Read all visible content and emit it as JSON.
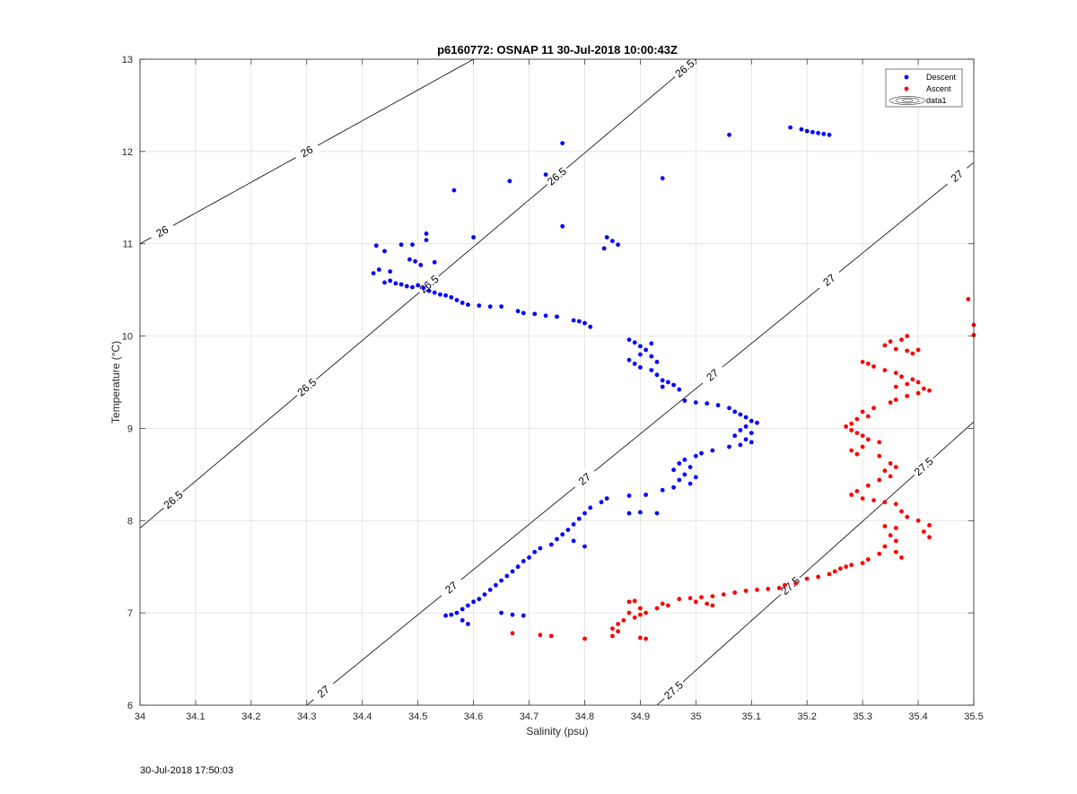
{
  "chart_data": {
    "type": "scatter",
    "title": "p6160772: OSNAP 11 30-Jul-2018 10:00:43Z",
    "xlabel": "Salinity (psu)",
    "ylabel": "Temperature (°C)",
    "xlim": [
      34,
      35.5
    ],
    "ylim": [
      6,
      13
    ],
    "xticks": [
      "34",
      "34.1",
      "34.2",
      "34.3",
      "34.4",
      "34.5",
      "34.6",
      "34.7",
      "34.8",
      "34.9",
      "35",
      "35.1",
      "35.2",
      "35.3",
      "35.4",
      "35.5"
    ],
    "yticks": [
      "6",
      "7",
      "8",
      "9",
      "10",
      "11",
      "12",
      "13"
    ],
    "grid": true,
    "legend": {
      "placement": "top-right",
      "entries": [
        "Descent",
        "Ascent",
        "data1"
      ]
    },
    "series": [
      {
        "name": "Descent",
        "color": "#0000ff",
        "points": [
          [
            35.17,
            12.26
          ],
          [
            35.19,
            12.24
          ],
          [
            35.2,
            12.22
          ],
          [
            35.21,
            12.21
          ],
          [
            35.22,
            12.2
          ],
          [
            35.23,
            12.19
          ],
          [
            35.24,
            12.18
          ],
          [
            35.06,
            12.18
          ],
          [
            34.76,
            12.09
          ],
          [
            34.73,
            11.75
          ],
          [
            34.94,
            11.71
          ],
          [
            34.665,
            11.68
          ],
          [
            34.565,
            11.58
          ],
          [
            34.76,
            11.19
          ],
          [
            34.515,
            11.11
          ],
          [
            34.6,
            11.07
          ],
          [
            34.84,
            11.07
          ],
          [
            34.85,
            11.03
          ],
          [
            34.86,
            10.99
          ],
          [
            34.835,
            10.95
          ],
          [
            34.425,
            10.98
          ],
          [
            34.47,
            10.99
          ],
          [
            34.49,
            10.99
          ],
          [
            34.515,
            11.04
          ],
          [
            34.44,
            10.92
          ],
          [
            34.485,
            10.83
          ],
          [
            34.43,
            10.72
          ],
          [
            34.45,
            10.7
          ],
          [
            34.42,
            10.68
          ],
          [
            34.495,
            10.81
          ],
          [
            34.53,
            10.8
          ],
          [
            34.505,
            10.77
          ],
          [
            34.44,
            10.58
          ],
          [
            34.45,
            10.6
          ],
          [
            34.46,
            10.57
          ],
          [
            34.47,
            10.56
          ],
          [
            34.48,
            10.54
          ],
          [
            34.49,
            10.53
          ],
          [
            34.5,
            10.55
          ],
          [
            34.51,
            10.52
          ],
          [
            34.52,
            10.49
          ],
          [
            34.53,
            10.47
          ],
          [
            34.54,
            10.45
          ],
          [
            34.55,
            10.44
          ],
          [
            34.56,
            10.42
          ],
          [
            34.57,
            10.39
          ],
          [
            34.58,
            10.36
          ],
          [
            34.59,
            10.34
          ],
          [
            34.61,
            10.33
          ],
          [
            34.63,
            10.32
          ],
          [
            34.65,
            10.32
          ],
          [
            34.68,
            10.27
          ],
          [
            34.69,
            10.25
          ],
          [
            34.71,
            10.24
          ],
          [
            34.73,
            10.22
          ],
          [
            34.75,
            10.21
          ],
          [
            34.78,
            10.17
          ],
          [
            34.79,
            10.16
          ],
          [
            34.8,
            10.14
          ],
          [
            34.81,
            10.1
          ],
          [
            34.88,
            9.96
          ],
          [
            34.89,
            9.93
          ],
          [
            34.9,
            9.89
          ],
          [
            34.92,
            9.92
          ],
          [
            34.91,
            9.85
          ],
          [
            34.9,
            9.8
          ],
          [
            34.92,
            9.78
          ],
          [
            34.88,
            9.74
          ],
          [
            34.89,
            9.7
          ],
          [
            34.93,
            9.72
          ],
          [
            34.9,
            9.66
          ],
          [
            34.92,
            9.63
          ],
          [
            34.93,
            9.58
          ],
          [
            34.94,
            9.52
          ],
          [
            34.95,
            9.5
          ],
          [
            34.96,
            9.47
          ],
          [
            34.94,
            9.45
          ],
          [
            34.97,
            9.42
          ],
          [
            34.98,
            9.3
          ],
          [
            35.0,
            9.28
          ],
          [
            35.02,
            9.27
          ],
          [
            35.04,
            9.25
          ],
          [
            35.06,
            9.22
          ],
          [
            35.07,
            9.18
          ],
          [
            35.08,
            9.15
          ],
          [
            35.09,
            9.12
          ],
          [
            35.1,
            9.08
          ],
          [
            35.11,
            9.06
          ],
          [
            35.09,
            9.02
          ],
          [
            35.08,
            8.98
          ],
          [
            35.1,
            8.95
          ],
          [
            35.07,
            8.92
          ],
          [
            35.09,
            8.88
          ],
          [
            35.1,
            8.85
          ],
          [
            35.08,
            8.82
          ],
          [
            35.06,
            8.8
          ],
          [
            35.03,
            8.76
          ],
          [
            35.01,
            8.73
          ],
          [
            35.0,
            8.7
          ],
          [
            34.98,
            8.66
          ],
          [
            34.97,
            8.62
          ],
          [
            34.99,
            8.58
          ],
          [
            34.96,
            8.55
          ],
          [
            34.98,
            8.5
          ],
          [
            35.0,
            8.47
          ],
          [
            34.97,
            8.44
          ],
          [
            34.99,
            8.4
          ],
          [
            34.96,
            8.36
          ],
          [
            34.94,
            8.33
          ],
          [
            34.91,
            8.28
          ],
          [
            34.88,
            8.27
          ],
          [
            34.84,
            8.24
          ],
          [
            34.83,
            8.2
          ],
          [
            34.81,
            8.14
          ],
          [
            34.8,
            8.08
          ],
          [
            34.79,
            8.02
          ],
          [
            34.78,
            7.96
          ],
          [
            34.77,
            7.9
          ],
          [
            34.76,
            7.85
          ],
          [
            34.75,
            7.8
          ],
          [
            34.74,
            7.74
          ],
          [
            34.72,
            7.7
          ],
          [
            34.71,
            7.66
          ],
          [
            34.7,
            7.6
          ],
          [
            34.69,
            7.56
          ],
          [
            34.68,
            7.5
          ],
          [
            34.67,
            7.45
          ],
          [
            34.66,
            7.4
          ],
          [
            34.65,
            7.35
          ],
          [
            34.64,
            7.3
          ],
          [
            34.63,
            7.25
          ],
          [
            34.62,
            7.2
          ],
          [
            34.61,
            7.15
          ],
          [
            34.6,
            7.12
          ],
          [
            34.59,
            7.08
          ],
          [
            34.58,
            7.04
          ],
          [
            34.57,
            7.0
          ],
          [
            34.56,
            6.98
          ],
          [
            34.55,
            6.97
          ],
          [
            34.58,
            6.92
          ],
          [
            34.59,
            6.88
          ],
          [
            34.65,
            7.0
          ],
          [
            34.67,
            6.98
          ],
          [
            34.69,
            6.97
          ],
          [
            34.88,
            8.08
          ],
          [
            34.9,
            8.09
          ],
          [
            34.93,
            8.08
          ],
          [
            34.8,
            7.72
          ],
          [
            34.78,
            7.78
          ]
        ]
      },
      {
        "name": "Ascent",
        "color": "#ff0000",
        "points": [
          [
            35.49,
            10.4
          ],
          [
            35.5,
            10.12
          ],
          [
            35.5,
            10.01
          ],
          [
            35.38,
            10.0
          ],
          [
            35.37,
            9.96
          ],
          [
            35.35,
            9.94
          ],
          [
            35.34,
            9.9
          ],
          [
            35.36,
            9.86
          ],
          [
            35.38,
            9.84
          ],
          [
            35.4,
            9.85
          ],
          [
            35.39,
            9.81
          ],
          [
            35.3,
            9.72
          ],
          [
            35.31,
            9.7
          ],
          [
            35.32,
            9.67
          ],
          [
            35.34,
            9.63
          ],
          [
            35.36,
            9.6
          ],
          [
            35.37,
            9.56
          ],
          [
            35.39,
            9.53
          ],
          [
            35.4,
            9.5
          ],
          [
            35.38,
            9.48
          ],
          [
            35.36,
            9.45
          ],
          [
            35.41,
            9.43
          ],
          [
            35.42,
            9.41
          ],
          [
            35.4,
            9.38
          ],
          [
            35.38,
            9.35
          ],
          [
            35.36,
            9.31
          ],
          [
            35.35,
            9.28
          ],
          [
            35.32,
            9.22
          ],
          [
            35.3,
            9.18
          ],
          [
            35.31,
            9.13
          ],
          [
            35.29,
            9.1
          ],
          [
            35.28,
            9.05
          ],
          [
            35.27,
            9.02
          ],
          [
            35.28,
            8.98
          ],
          [
            35.29,
            8.95
          ],
          [
            35.3,
            8.92
          ],
          [
            35.31,
            8.88
          ],
          [
            35.33,
            8.85
          ],
          [
            35.3,
            8.8
          ],
          [
            35.28,
            8.76
          ],
          [
            35.29,
            8.72
          ],
          [
            35.33,
            8.7
          ],
          [
            35.35,
            8.62
          ],
          [
            35.36,
            8.58
          ],
          [
            35.34,
            8.54
          ],
          [
            35.35,
            8.48
          ],
          [
            35.33,
            8.44
          ],
          [
            35.31,
            8.38
          ],
          [
            35.29,
            8.32
          ],
          [
            35.28,
            8.28
          ],
          [
            35.3,
            8.24
          ],
          [
            35.32,
            8.22
          ],
          [
            35.34,
            8.2
          ],
          [
            35.36,
            8.18
          ],
          [
            35.37,
            8.1
          ],
          [
            35.38,
            8.04
          ],
          [
            35.4,
            8.0
          ],
          [
            35.42,
            7.95
          ],
          [
            35.41,
            7.88
          ],
          [
            35.42,
            7.82
          ],
          [
            35.36,
            7.92
          ],
          [
            35.34,
            7.94
          ],
          [
            35.35,
            7.84
          ],
          [
            35.36,
            7.78
          ],
          [
            35.34,
            7.72
          ],
          [
            35.36,
            7.66
          ],
          [
            35.37,
            7.6
          ],
          [
            35.33,
            7.64
          ],
          [
            35.31,
            7.58
          ],
          [
            35.3,
            7.54
          ],
          [
            35.28,
            7.52
          ],
          [
            35.27,
            7.5
          ],
          [
            35.26,
            7.48
          ],
          [
            35.25,
            7.45
          ],
          [
            35.24,
            7.42
          ],
          [
            35.22,
            7.39
          ],
          [
            35.2,
            7.37
          ],
          [
            35.18,
            7.32
          ],
          [
            35.16,
            7.3
          ],
          [
            35.15,
            7.27
          ],
          [
            35.13,
            7.26
          ],
          [
            35.11,
            7.25
          ],
          [
            35.09,
            7.24
          ],
          [
            35.07,
            7.22
          ],
          [
            35.05,
            7.2
          ],
          [
            35.03,
            7.18
          ],
          [
            35.01,
            7.17
          ],
          [
            34.99,
            7.16
          ],
          [
            34.97,
            7.15
          ],
          [
            35.02,
            7.1
          ],
          [
            35.03,
            7.08
          ],
          [
            35.0,
            7.12
          ],
          [
            34.95,
            7.08
          ],
          [
            34.94,
            7.1
          ],
          [
            34.93,
            7.05
          ],
          [
            34.91,
            7.0
          ],
          [
            34.9,
            6.98
          ],
          [
            34.89,
            6.95
          ],
          [
            34.87,
            6.92
          ],
          [
            34.86,
            6.88
          ],
          [
            34.85,
            6.83
          ],
          [
            34.86,
            6.8
          ],
          [
            34.85,
            6.75
          ],
          [
            34.9,
            6.73
          ],
          [
            34.91,
            6.72
          ],
          [
            34.88,
            7.12
          ],
          [
            34.89,
            7.13
          ],
          [
            34.9,
            7.05
          ],
          [
            34.88,
            7.0
          ],
          [
            34.8,
            6.72
          ],
          [
            34.74,
            6.75
          ],
          [
            34.72,
            6.76
          ],
          [
            34.67,
            6.78
          ]
        ]
      }
    ],
    "isopycnals": [
      {
        "sigma": 26,
        "labels": [
          "26",
          "26"
        ]
      },
      {
        "sigma": 26.5,
        "labels": [
          "26.5",
          "26.5",
          "26.5",
          "26.5",
          "26.5"
        ]
      },
      {
        "sigma": 27,
        "labels": [
          "27",
          "27",
          "27",
          "27",
          "27",
          "27"
        ]
      },
      {
        "sigma": 27.5,
        "labels": [
          "27.5",
          "27.5",
          "27.5"
        ]
      }
    ]
  },
  "timestamp": "30-Jul-2018 17:50:03"
}
